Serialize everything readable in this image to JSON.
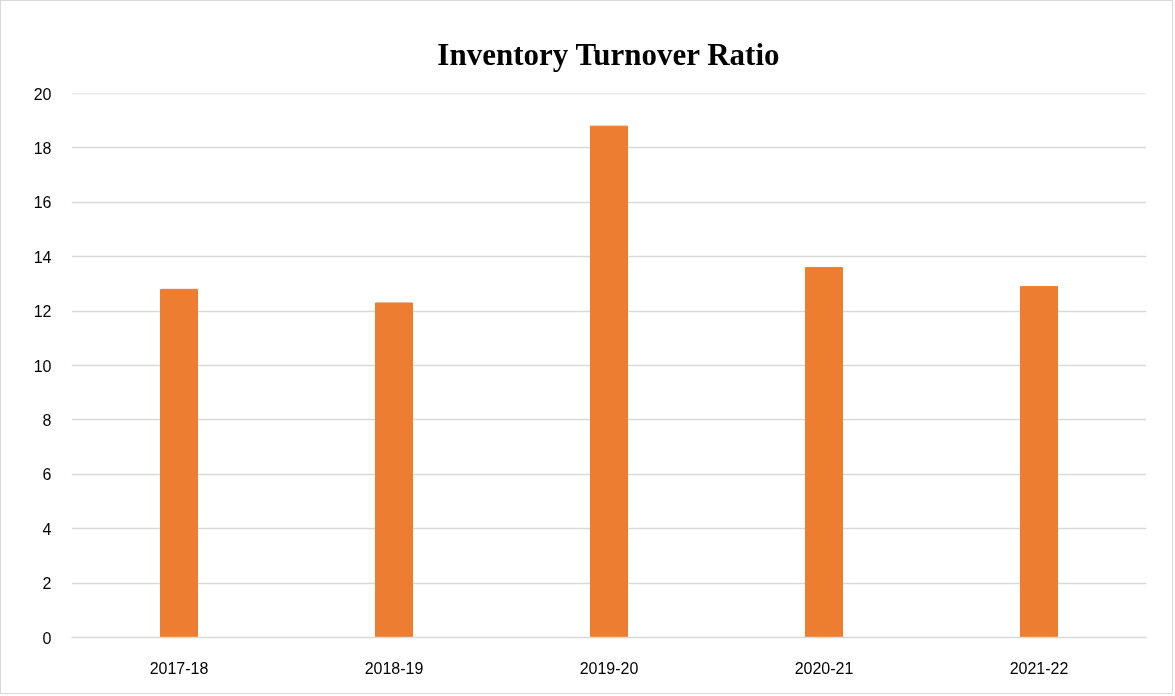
{
  "chart_data": {
    "type": "bar",
    "title": "Inventory Turnover Ratio",
    "categories": [
      "2017-18",
      "2018-19",
      "2019-20",
      "2020-21",
      "2021-22"
    ],
    "values": [
      12.8,
      12.3,
      18.8,
      13.6,
      12.9
    ],
    "color": "#ed7d31",
    "ylim": [
      0,
      20
    ],
    "yticks": [
      0,
      2,
      4,
      6,
      8,
      10,
      12,
      14,
      16,
      18,
      20
    ],
    "grid": "y"
  }
}
